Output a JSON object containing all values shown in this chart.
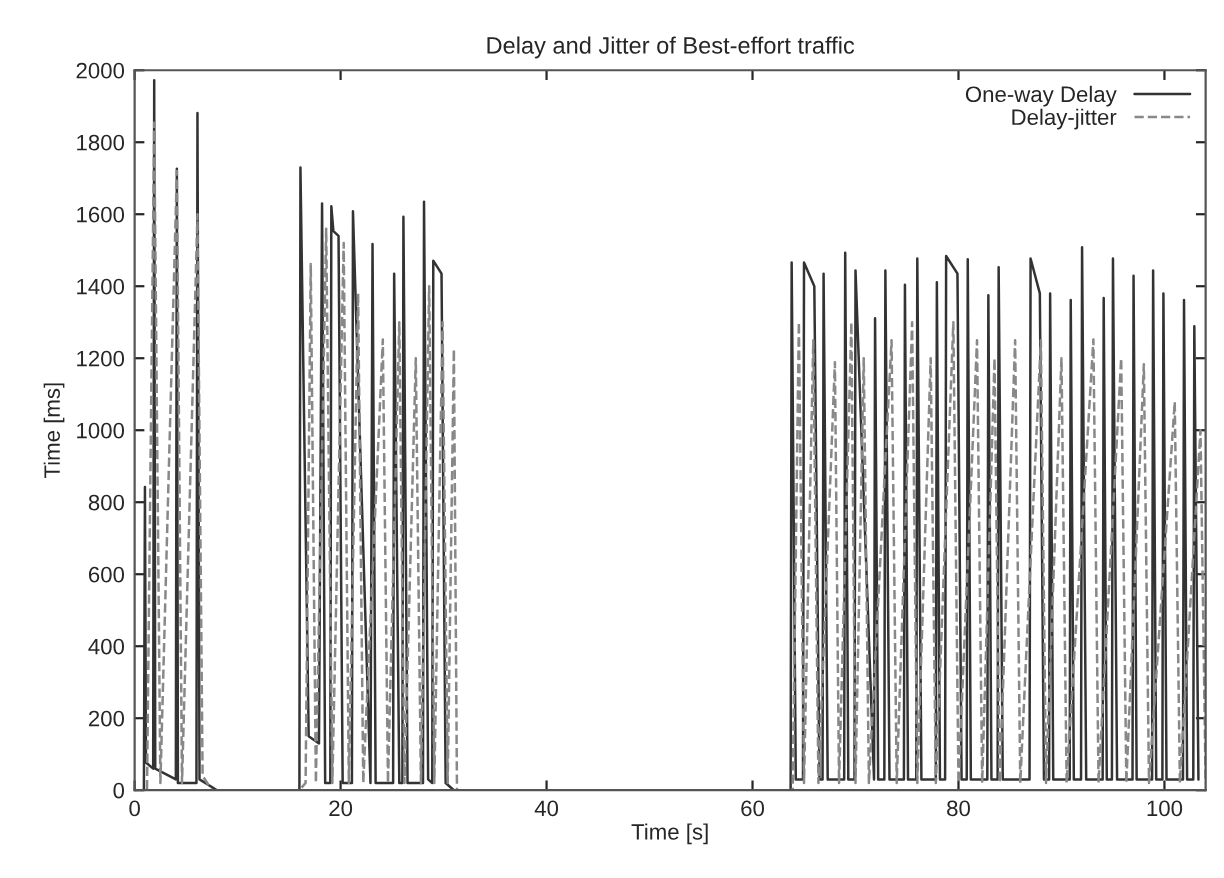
{
  "chart_data": {
    "type": "line",
    "title": "Delay and Jitter of Best-effort traffic",
    "xlabel": "Time [s]",
    "ylabel": "Time [ms]",
    "xlim": [
      0,
      104
    ],
    "xticks": [
      0,
      20,
      40,
      60,
      80,
      100
    ],
    "ylim": [
      0,
      2000
    ],
    "yticks": [
      0,
      200,
      400,
      600,
      800,
      1000,
      1200,
      1400,
      1600,
      1800,
      2000
    ],
    "grid": false,
    "legend": "top right",
    "series": [
      {
        "name": "One-way Delay",
        "color": "#333333",
        "line_style": "solid",
        "x": [
          0,
          0.9,
          1.0,
          1.1,
          1.8,
          1.9,
          2.0,
          4.0,
          4.1,
          4.2,
          6.0,
          6.1,
          6.3,
          8.0,
          16.0,
          16.1,
          16.9,
          17.9,
          18.2,
          18.5,
          19.0,
          19.1,
          19.3,
          19.8,
          20.2,
          21.1,
          21.2,
          22.9,
          23.1,
          23.4,
          25.1,
          25.2,
          25.7,
          26.0,
          26.1,
          26.5,
          28.0,
          28.1,
          28.5,
          28.9,
          29.0,
          29.8,
          30.2,
          31,
          63.7,
          63.8,
          64.2,
          64.9,
          65.0,
          66.0,
          66.5,
          66.8,
          66.9,
          67.3,
          68.9,
          69.0,
          69.3,
          69.9,
          70.0,
          71.8,
          71.9,
          72.2,
          72.8,
          72.9,
          73.3,
          74.7,
          74.8,
          75.1,
          75.9,
          76.0,
          76.4,
          77.8,
          77.9,
          78.2,
          78.7,
          78.8,
          79.9,
          80.3,
          80.8,
          80.9,
          81.2,
          82.8,
          82.9,
          83.2,
          83.8,
          83.9,
          84.3,
          86.9,
          87.0,
          87.9,
          88.3,
          88.8,
          88.9,
          89.2,
          90.8,
          90.9,
          91.2,
          91.9,
          92.0,
          92.4,
          94.0,
          94.1,
          94.4,
          94.9,
          95.0,
          95.4,
          96.9,
          97.0,
          97.3,
          98.8,
          98.9,
          99.2,
          99.8,
          99.9,
          100.2,
          101.8,
          101.9,
          102.2,
          102.8,
          102.9,
          103.3
        ],
        "values": [
          0,
          0,
          842,
          77,
          60,
          1972,
          60,
          30,
          1726,
          20,
          20,
          1881,
          30,
          0,
          0,
          1730,
          150,
          130,
          1630,
          20,
          20,
          1622,
          1553,
          1540,
          20,
          20,
          1608,
          20,
          1517,
          20,
          20,
          1435,
          20,
          20,
          1593,
          20,
          20,
          1635,
          30,
          20,
          1471,
          1435,
          20,
          0,
          0,
          1466,
          30,
          30,
          1466,
          1400,
          30,
          30,
          1435,
          30,
          30,
          1493,
          30,
          30,
          1444,
          30,
          1311,
          30,
          30,
          1444,
          30,
          30,
          1404,
          30,
          30,
          1477,
          30,
          30,
          1411,
          30,
          30,
          1484,
          1435,
          30,
          30,
          1475,
          30,
          30,
          1375,
          30,
          30,
          1453,
          30,
          30,
          1477,
          1380,
          30,
          30,
          1380,
          30,
          30,
          1362,
          30,
          30,
          1508,
          30,
          30,
          1367,
          30,
          30,
          1477,
          30,
          30,
          1429,
          30,
          30,
          1444,
          30,
          30,
          1380,
          30,
          30,
          1362,
          30,
          30,
          1289,
          30
        ]
      },
      {
        "name": "Delay-jitter",
        "color": "#888888",
        "line_style": "dashed",
        "x": [
          0,
          1.2,
          1.9,
          2.5,
          4.1,
          4.6,
          6.1,
          6.6,
          7.5,
          16.0,
          16.6,
          17.1,
          17.6,
          18.6,
          19.2,
          20.3,
          20.8,
          21.7,
          22.2,
          24.1,
          24.6,
          25.7,
          26.2,
          27.3,
          27.8,
          28.6,
          29.1,
          29.9,
          30.4,
          31.0,
          31.3,
          63.9,
          64.5,
          65.0,
          65.9,
          66.4,
          68.0,
          68.4,
          69.6,
          70.0,
          70.8,
          71.3,
          73.5,
          74.0,
          75.5,
          76.0,
          77.3,
          77.8,
          79.5,
          80.0,
          81.8,
          82.3,
          83.5,
          84.0,
          85.5,
          86.0,
          88.0,
          88.5,
          90.0,
          90.5,
          93.1,
          93.6,
          95.8,
          96.3,
          98.0,
          98.5,
          101.0,
          101.5,
          103.5,
          104
        ],
        "values": [
          0,
          0,
          1854,
          20,
          1720,
          20,
          1600,
          40,
          0,
          0,
          20,
          1462,
          20,
          1560,
          20,
          1520,
          20,
          1380,
          20,
          1252,
          20,
          1300,
          20,
          1200,
          20,
          1400,
          20,
          1300,
          20,
          1225,
          0,
          0,
          1300,
          20,
          1250,
          20,
          1189,
          20,
          1300,
          20,
          1200,
          20,
          1250,
          20,
          1300,
          20,
          1200,
          20,
          1300,
          20,
          1250,
          20,
          1200,
          20,
          1250,
          20,
          1250,
          20,
          1200,
          20,
          1252,
          20,
          1200,
          20,
          1183,
          20,
          1079,
          20,
          1000,
          20
        ]
      }
    ]
  }
}
